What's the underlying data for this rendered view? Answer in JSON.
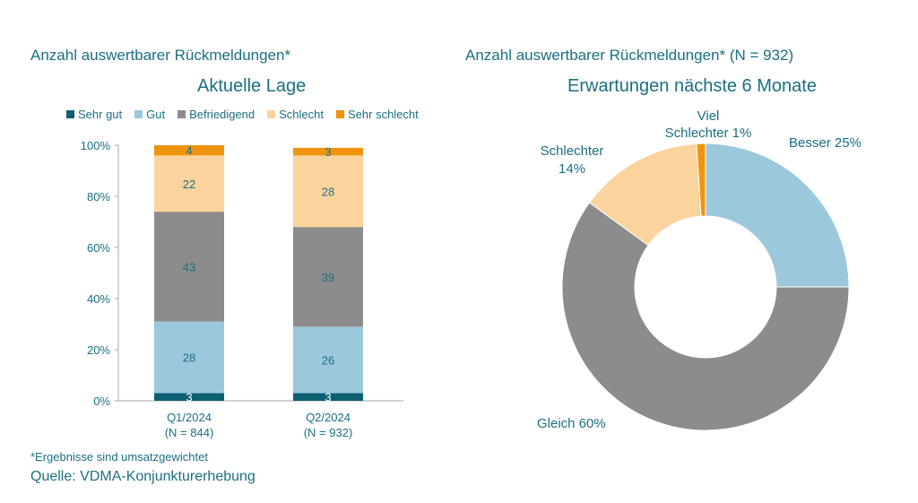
{
  "left": {
    "header": "Anzahl auswertbarer Rückmeldungen*",
    "title": "Aktuelle Lage"
  },
  "right": {
    "header": "Anzahl auswertbarer Rückmeldungen* (N = 932)",
    "title": "Erwartungen nächste 6 Monate"
  },
  "footnote": "*Ergebnisse sind umsatzgewichtet",
  "source": "Quelle: VDMA-Konjunkturerhebung",
  "colors": {
    "sehr_gut": "#0d5f73",
    "gut": "#9cc8dc",
    "befriedigend": "#8c8c8c",
    "schlecht": "#fbd39c",
    "sehr_schlecht": "#f0940f"
  },
  "chart_data": [
    {
      "type": "bar",
      "stacked": true,
      "title": "Aktuelle Lage",
      "categories": [
        {
          "line1": "Q1/2024",
          "line2": "(N = 844)"
        },
        {
          "line1": "Q2/2024",
          "line2": "(N = 932)"
        }
      ],
      "series": [
        {
          "name": "Sehr gut",
          "color": "#0d5f73",
          "values": [
            3,
            3
          ]
        },
        {
          "name": "Gut",
          "color": "#9cc8dc",
          "values": [
            28,
            26
          ]
        },
        {
          "name": "Befriedigend",
          "color": "#8c8c8c",
          "values": [
            43,
            39
          ]
        },
        {
          "name": "Schlecht",
          "color": "#fbd39c",
          "values": [
            22,
            28
          ]
        },
        {
          "name": "Sehr schlecht",
          "color": "#f0940f",
          "values": [
            4,
            3
          ]
        }
      ],
      "ylim": [
        0,
        100
      ],
      "yticks": [
        "0%",
        "20%",
        "40%",
        "60%",
        "80%",
        "100%"
      ],
      "legend": "top"
    },
    {
      "type": "pie",
      "donut": true,
      "title": "Erwartungen nächste 6 Monate",
      "slices": [
        {
          "name": "Besser",
          "value": 25,
          "label": "Besser 25%",
          "color": "#9cc8dc"
        },
        {
          "name": "Gleich",
          "value": 60,
          "label": "Gleich  60%",
          "color": "#8c8c8c"
        },
        {
          "name": "Schlechter",
          "value": 14,
          "label_line1": "Schlechter",
          "label_line2": "14%",
          "color": "#fbd39c"
        },
        {
          "name": "Viel Schlechter",
          "value": 1,
          "label_line1": "Viel",
          "label_line2": "Schlechter 1%",
          "color": "#f0940f"
        }
      ]
    }
  ]
}
